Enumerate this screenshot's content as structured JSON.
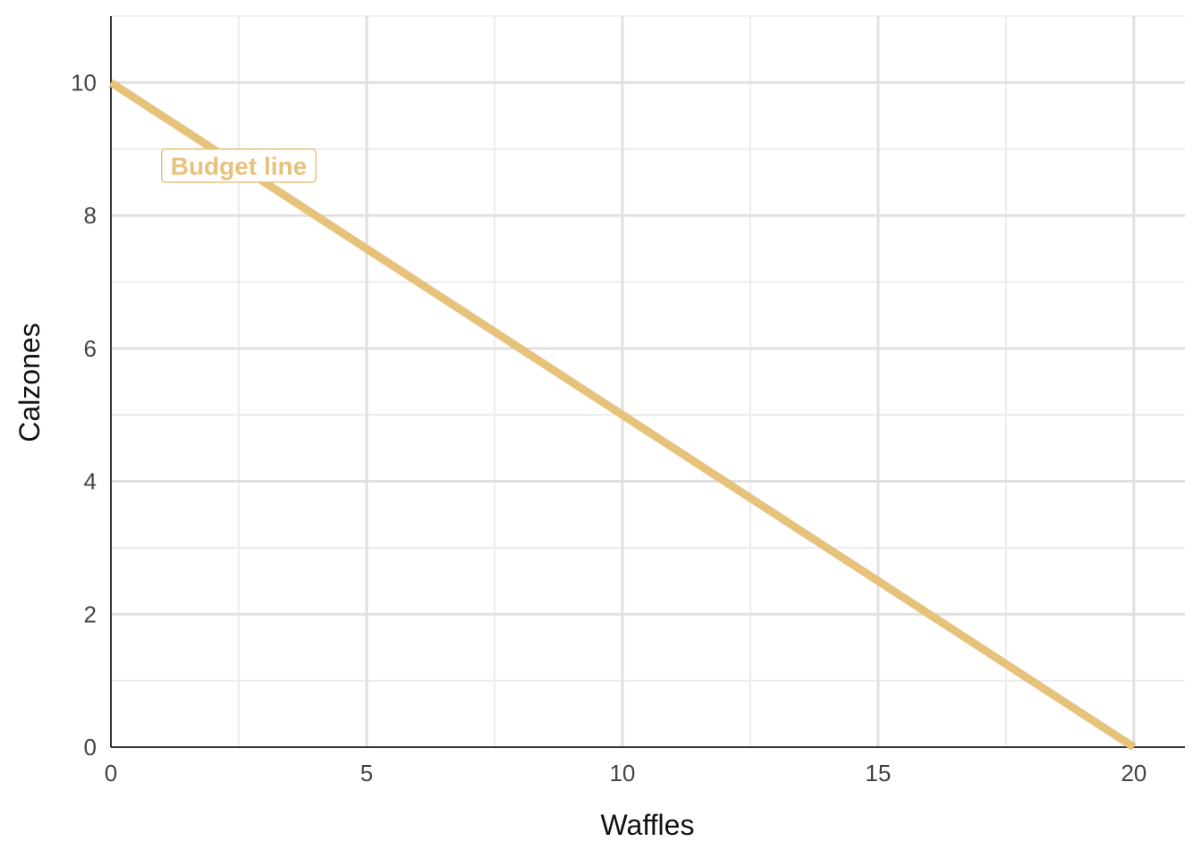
{
  "chart_data": {
    "type": "line",
    "title": "",
    "xlabel": "Waffles",
    "ylabel": "Calzones",
    "xlim": [
      0,
      21
    ],
    "ylim": [
      0,
      11
    ],
    "x_ticks": [
      0,
      5,
      10,
      15,
      20
    ],
    "y_ticks": [
      0,
      2,
      4,
      6,
      8,
      10
    ],
    "x_tick_labels": [
      "0",
      "5",
      "10",
      "15",
      "20"
    ],
    "y_tick_labels": [
      "0",
      "2",
      "4",
      "6",
      "8",
      "10"
    ],
    "grid": true,
    "series": [
      {
        "x": [
          0,
          20
        ],
        "y": [
          10,
          0
        ],
        "color": "#e6c27a"
      }
    ],
    "annotations": [
      {
        "text": "Budget line",
        "x": 2.5,
        "y": 8.75,
        "color": "#e6c27a"
      }
    ]
  }
}
